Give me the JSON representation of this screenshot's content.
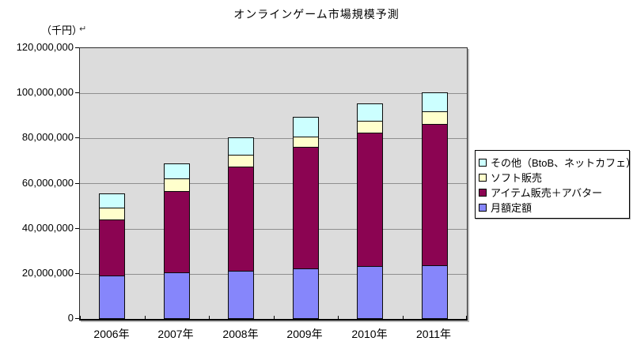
{
  "title": "オンラインゲーム市場規模予測",
  "return_mark": "↵",
  "chart_data": {
    "type": "bar",
    "stacked": true,
    "title": "オンラインゲーム市場規模予測",
    "ylabel": "（千円）",
    "xlabel": "",
    "grid": true,
    "legend_position": "right",
    "plot_background": "#dcdcdc",
    "ylim": [
      0,
      120000000
    ],
    "ytick_interval": 20000000,
    "ytick_labels": [
      "0",
      "20,000,000",
      "40,000,000",
      "60,000,000",
      "80,000,000",
      "100,000,000",
      "120,000,000"
    ],
    "categories": [
      "2006年",
      "2007年",
      "2008年",
      "2009年",
      "2010年",
      "2011年"
    ],
    "series": [
      {
        "name": "月額定額",
        "color": "#8686fb",
        "values": [
          19300000,
          20600000,
          21500000,
          22300000,
          23300000,
          23900000
        ]
      },
      {
        "name": "アイテム販売＋アバター",
        "color": "#8b0452",
        "values": [
          25300000,
          36300000,
          46500000,
          54400000,
          59400000,
          63100000
        ]
      },
      {
        "name": "ソフト販売",
        "color": "#ffffcc",
        "values": [
          5600000,
          5800000,
          5600000,
          4800000,
          5500000,
          5900000
        ]
      },
      {
        "name": "その他（BtoB、ネットカフェ）",
        "color": "#ccffff",
        "values": [
          6600000,
          6900000,
          7900000,
          9000000,
          8200000,
          8700000
        ]
      }
    ]
  }
}
